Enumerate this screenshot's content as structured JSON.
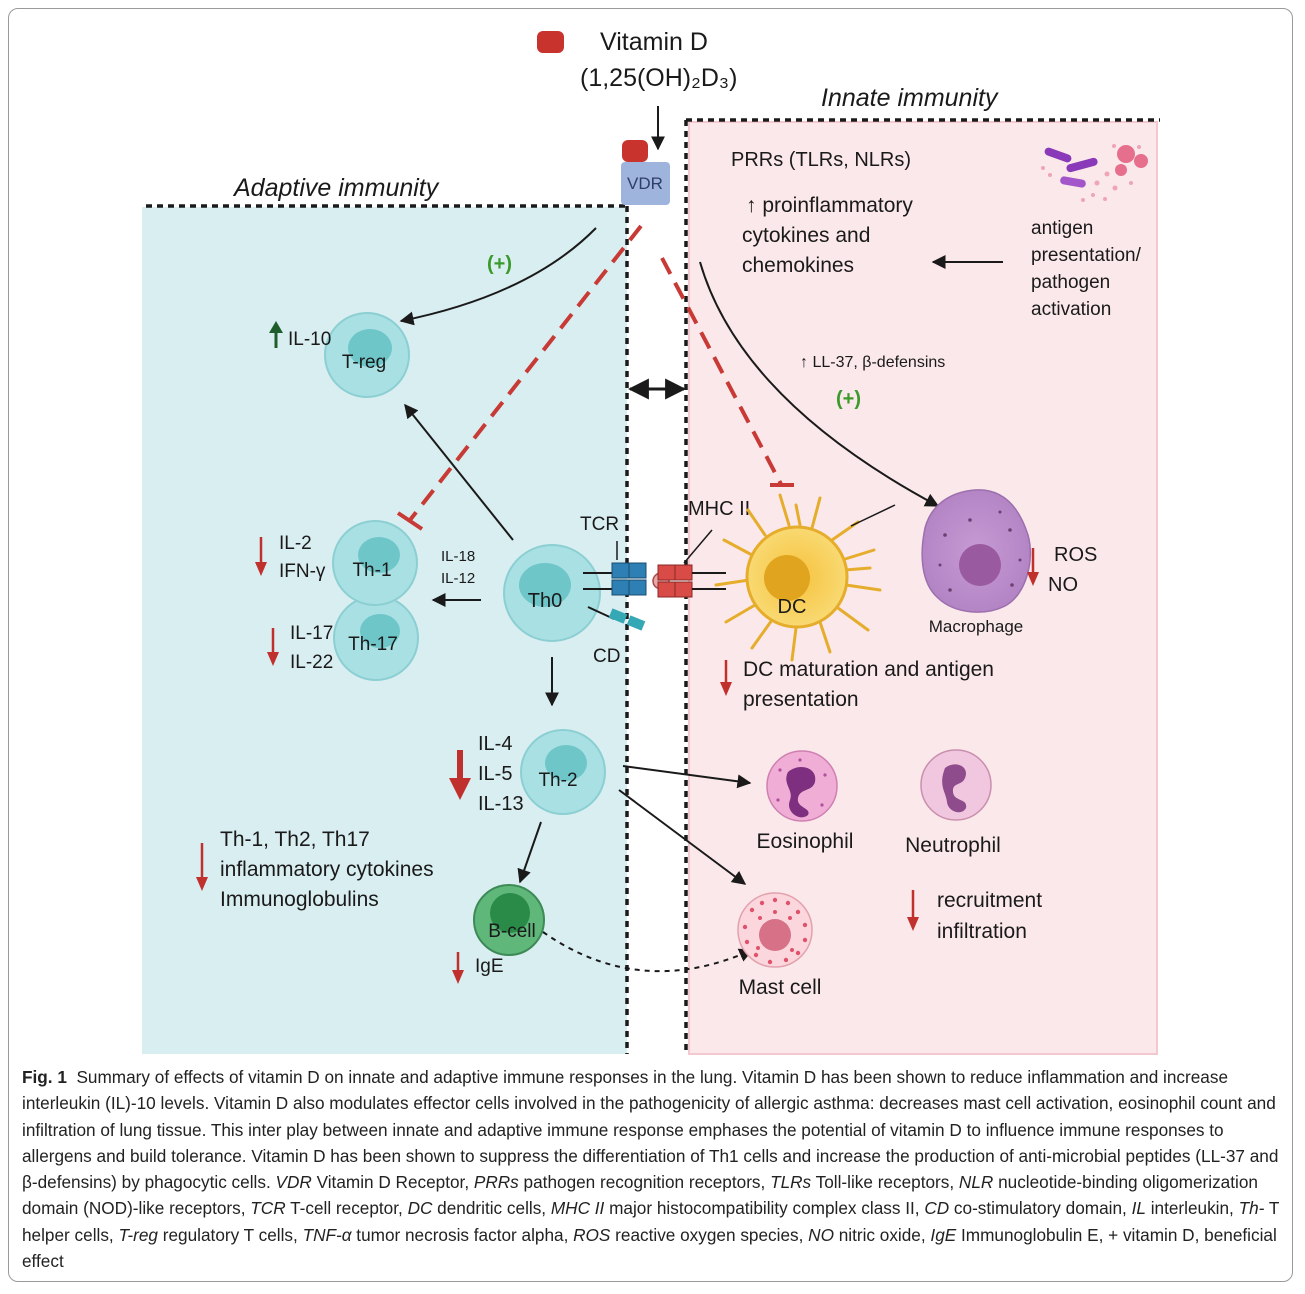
{
  "vitamin_d": {
    "name": "Vitamin D",
    "formula": "(1,25(OH)₂D₃)"
  },
  "labels": {
    "vdr": "VDR",
    "innate": "Innate immunity",
    "adaptive": "Adaptive immunity",
    "prrs": "PRRs (TLRs, NLRs)",
    "proinflam_1": "↑ proinflammatory",
    "proinflam_2": "cytokines and",
    "proinflam_3": "chemokines",
    "antigen_1": "antigen",
    "antigen_2": "presentation/",
    "antigen_3": "pathogen",
    "antigen_4": "activation",
    "plus_1": "(+)",
    "plus_2": "(+)",
    "ll37": "↑ LL-37, β-defensins",
    "il10": "IL-10",
    "treg": "T-reg",
    "th1": "Th-1",
    "th17": "Th-17",
    "th0": "Th0",
    "th2": "Th-2",
    "bcell": "B-cell",
    "il2": "IL-2",
    "ifng": "IFN-γ",
    "il17": "IL-17",
    "il22": "IL-22",
    "il18": "IL-18",
    "il12": "IL-12",
    "tcr": "TCR",
    "cd": "CD",
    "mhc": "MHC  II",
    "dc": "DC",
    "macrophage": "Macrophage",
    "ros": "ROS",
    "no": "NO",
    "dc_maturation_1": "DC maturation and antigen",
    "dc_maturation_2": "presentation",
    "il4": "IL-4",
    "il5": "IL-5",
    "il13": "IL-13",
    "eosinophil": "Eosinophil",
    "neutrophil": "Neutrophil",
    "mast": "Mast cell",
    "recruit_1": "recruitment",
    "recruit_2": "infiltration",
    "summary_1": "Th-1, Th2, Th17",
    "summary_2": "inflammatory cytokines",
    "summary_3": "Immunoglobulins",
    "ige": "IgE"
  },
  "caption": {
    "fig_label": "Fig. 1",
    "segments": [
      {
        "t": "Summary of effects of vitamin D on innate and adaptive immune responses in the lung. Vitamin D has been shown to reduce inflammation and increase interleukin (IL)-10 levels. Vitamin D also modulates effector cells involved in the pathogenicity of allergic asthma: decreases mast cell activation, eosinophil count and infiltration of lung tissue. This inter play between innate and adaptive immune response emphases the potential of vitamin D to influence immune responses to allergens and build tolerance. Vitamin D has been shown to suppress the differentiation of Th1 cells and increase the production of anti-microbial peptides (LL-37 and β-defensins) by phagocytic cells. ",
        "i": false
      },
      {
        "t": "VDR",
        "i": true
      },
      {
        "t": " Vitamin D Receptor, ",
        "i": false
      },
      {
        "t": "PRRs",
        "i": true
      },
      {
        "t": " pathogen recognition receptors, ",
        "i": false
      },
      {
        "t": "TLRs",
        "i": true
      },
      {
        "t": " Toll-like receptors, ",
        "i": false
      },
      {
        "t": "NLR",
        "i": true
      },
      {
        "t": " nucleotide-binding oligomerization domain (NOD)-like receptors, ",
        "i": false
      },
      {
        "t": "TCR",
        "i": true
      },
      {
        "t": " T-cell receptor, ",
        "i": false
      },
      {
        "t": "DC",
        "i": true
      },
      {
        "t": " dendritic cells, ",
        "i": false
      },
      {
        "t": "MHC II",
        "i": true
      },
      {
        "t": " major histocompatibility complex class II, ",
        "i": false
      },
      {
        "t": "CD",
        "i": true
      },
      {
        "t": " co-stimulatory domain, ",
        "i": false
      },
      {
        "t": "IL",
        "i": true
      },
      {
        "t": " interleukin, ",
        "i": false
      },
      {
        "t": "Th-",
        "i": true
      },
      {
        "t": " T helper cells, ",
        "i": false
      },
      {
        "t": "T-reg",
        "i": true
      },
      {
        "t": " regulatory T cells, ",
        "i": false
      },
      {
        "t": "TNF-α",
        "i": true
      },
      {
        "t": " tumor necrosis factor alpha, ",
        "i": false
      },
      {
        "t": "ROS",
        "i": true
      },
      {
        "t": " reactive oxygen species, ",
        "i": false
      },
      {
        "t": "NO",
        "i": true
      },
      {
        "t": " nitric oxide, ",
        "i": false
      },
      {
        "t": "IgE",
        "i": true
      },
      {
        "t": " Immunoglobulin E, ",
        "i": false
      },
      {
        "t": "+",
        "i": false
      },
      {
        "t": " vitamin D, beneficial effect",
        "i": false
      }
    ]
  },
  "colors": {
    "adaptive_bg": "#d9eef1",
    "innate_bg": "#fbe8ea",
    "inhibit_red": "#c73a35",
    "cell_fill": "#a8e0e3",
    "cell_nucleus": "#6ec6c9",
    "plus_green": "#3a9a2a",
    "down_arrow": "#c0302c",
    "vdr_fill": "#9eb4dc"
  }
}
